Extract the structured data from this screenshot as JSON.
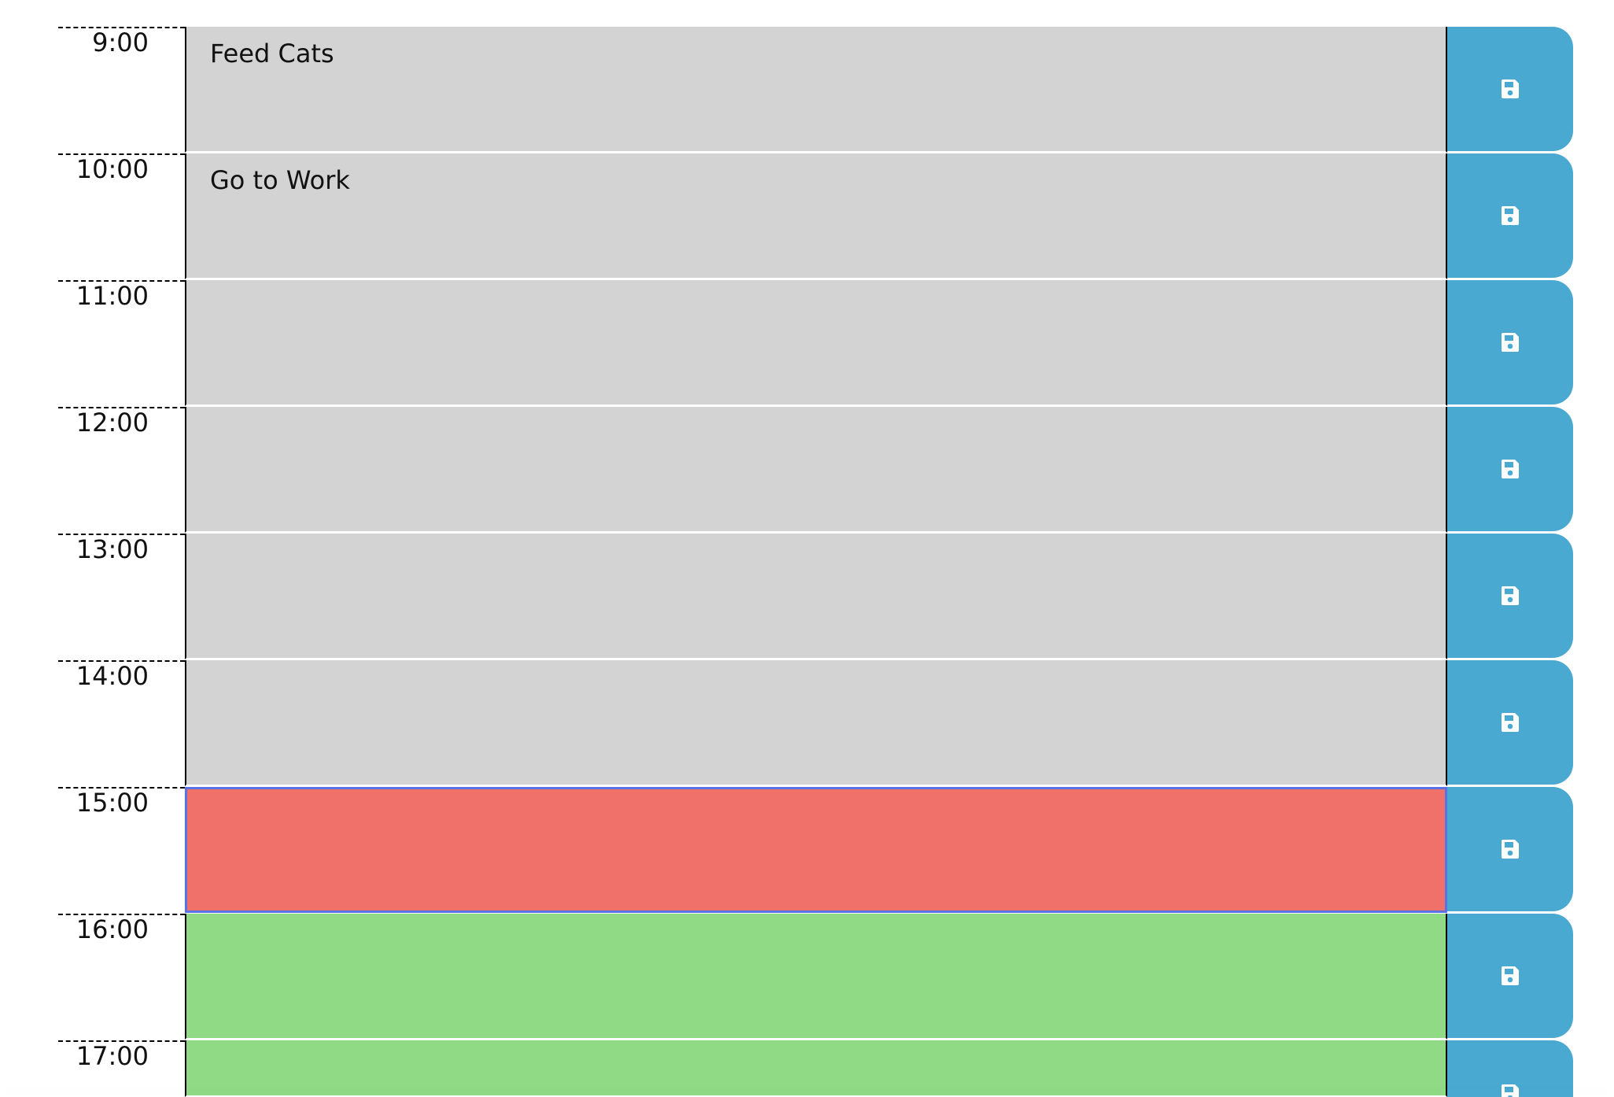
{
  "schedule": {
    "rows": [
      {
        "hour": "9:00",
        "text": "Feed Cats",
        "state": "past"
      },
      {
        "hour": "10:00",
        "text": "Go to Work",
        "state": "past"
      },
      {
        "hour": "11:00",
        "text": "",
        "state": "past"
      },
      {
        "hour": "12:00",
        "text": "",
        "state": "past"
      },
      {
        "hour": "13:00",
        "text": "",
        "state": "past"
      },
      {
        "hour": "14:00",
        "text": "",
        "state": "past"
      },
      {
        "hour": "15:00",
        "text": "",
        "state": "present"
      },
      {
        "hour": "16:00",
        "text": "",
        "state": "future"
      },
      {
        "hour": "17:00",
        "text": "",
        "state": "future"
      }
    ],
    "save_icon": "floppy-disk-icon"
  },
  "colors": {
    "past": "#d3d3d3",
    "present": "#ef7169",
    "future": "#90da86",
    "save_button": "#4aa9d1",
    "focus_outline": "#5b72e6"
  }
}
